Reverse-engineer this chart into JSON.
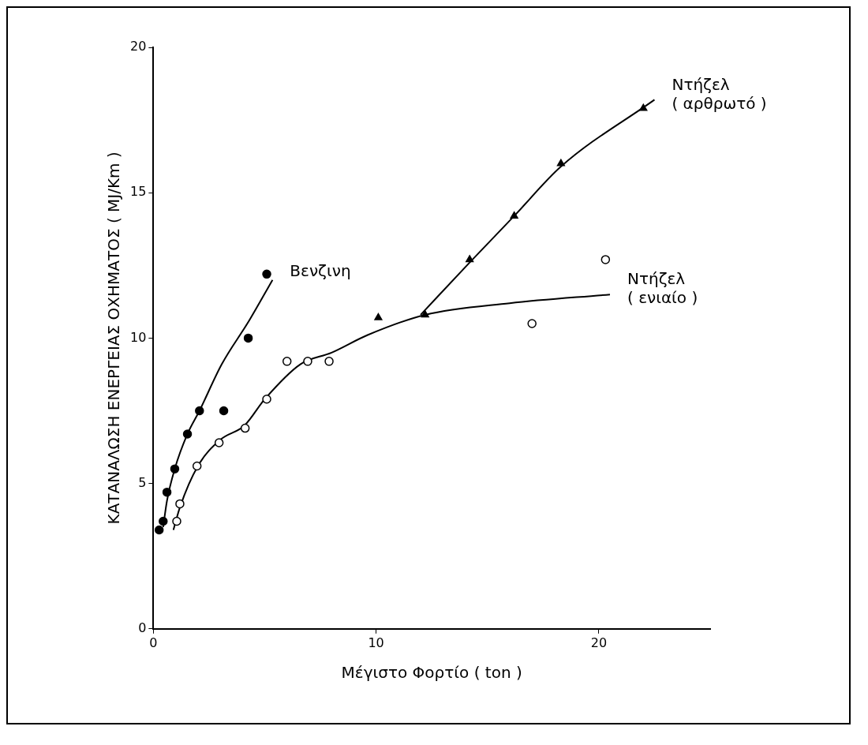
{
  "chart_data": {
    "type": "scatter",
    "xlabel": "Μέγιστο Φορτίο ( ton )",
    "ylabel": "ΚΑΤΑΝΑΛΩΣΗ ΕΝΕΡΓΕΙΑΣ ΟΧΗΜΑΤΟΣ ( MJ/Km )",
    "xlim": [
      0,
      25
    ],
    "xticks": [
      0,
      10,
      20
    ],
    "ylim": [
      0,
      20
    ],
    "yticks": [
      0,
      5,
      10,
      15,
      20
    ],
    "grid": false,
    "legend": false,
    "series": [
      {
        "type": "scatter",
        "color": "#000000",
        "marker": "circle",
        "x": [
          0.26,
          0.44,
          0.61,
          0.96,
          1.53,
          2.07,
          3.16,
          4.26,
          5.09
        ],
        "values": [
          3.4,
          3.7,
          4.7,
          5.5,
          6.7,
          7.5,
          7.5,
          10.0,
          12.2
        ]
      },
      {
        "type": "line",
        "name": "Βενζινη",
        "color": "#000000",
        "marker": "none",
        "x": [
          0.44,
          0.61,
          0.96,
          1.53,
          2.07,
          3.07,
          4.3,
          5.35
        ],
        "values": [
          3.5,
          4.4,
          5.5,
          6.7,
          7.5,
          9.1,
          10.6,
          12.0
        ]
      },
      {
        "type": "scatter",
        "color": "#ffffff",
        "marker": "circle",
        "x": [
          1.05,
          1.19,
          1.96,
          2.95,
          4.12,
          5.09,
          6.0,
          6.93,
          7.89,
          17.0,
          20.3
        ],
        "values": [
          3.7,
          4.3,
          5.6,
          6.4,
          6.9,
          7.9,
          9.2,
          9.2,
          9.2,
          10.5,
          12.7
        ]
      },
      {
        "type": "line",
        "name": "Ντήζελ\n( ενιαίο )",
        "color": "#000000",
        "marker": "none",
        "x": [
          0.9,
          1.2,
          2.0,
          3.0,
          4.1,
          5.0,
          6.6,
          8.0,
          9.6,
          12.2,
          16.0,
          20.5
        ],
        "values": [
          3.4,
          4.2,
          5.6,
          6.5,
          7.0,
          7.9,
          9.1,
          9.5,
          10.1,
          10.8,
          11.2,
          11.5
        ]
      },
      {
        "type": "scatter",
        "color": "#000000",
        "marker": "triangle",
        "x": [
          10.1,
          12.2,
          14.2,
          16.2,
          18.3,
          22.0
        ],
        "values": [
          10.7,
          10.8,
          12.7,
          14.2,
          16.0,
          17.9
        ]
      },
      {
        "type": "line",
        "name": "Ντήζελ\n( αρθρωτό )",
        "color": "#000000",
        "marker": "none",
        "x": [
          12.0,
          14.2,
          16.2,
          18.3,
          22.5
        ],
        "values": [
          10.8,
          12.6,
          14.2,
          15.9,
          18.2
        ]
      }
    ]
  }
}
